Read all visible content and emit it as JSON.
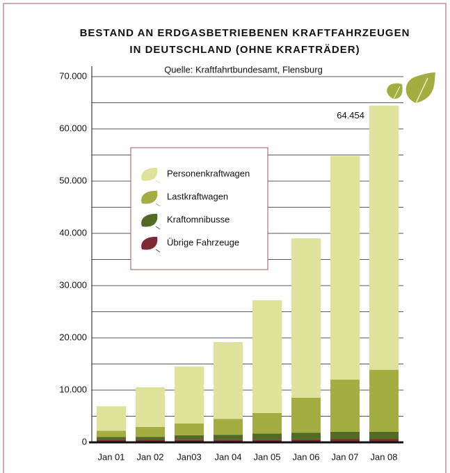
{
  "chart_data": {
    "type": "stacked_bar",
    "title": [
      "BESTAND AN ERDGASBETRIEBENEN KRAFTFAHRZEUGEN",
      "IN DEUTSCHLAND (OHNE KRAFTRÄDER)"
    ],
    "subtitle": "Quelle: Kraftfahrtbundesamt, Flensburg",
    "categories": [
      "Jan 01",
      "Jan 02",
      "Jan03",
      "Jan 04",
      "Jan 05",
      "Jan 06",
      "Jan 07",
      "Jan 08"
    ],
    "series": [
      {
        "name": "Personenkraftwagen",
        "color": "#dfe29b",
        "values": [
          4700,
          7600,
          10900,
          14700,
          21600,
          30500,
          42800,
          50554
        ]
      },
      {
        "name": "Lastkraftwagen",
        "color": "#a3ad42",
        "values": [
          1200,
          1900,
          2250,
          3050,
          3900,
          6700,
          10000,
          11900
        ]
      },
      {
        "name": "Kraftomnibusse",
        "color": "#536a24",
        "values": [
          600,
          650,
          900,
          1000,
          1200,
          1300,
          1400,
          1400
        ]
      },
      {
        "name": "Übrige Fahrzeuge",
        "color": "#7e2a36",
        "values": [
          400,
          400,
          450,
          450,
          500,
          550,
          600,
          600
        ]
      }
    ],
    "annotation": {
      "value": 64454,
      "label": "64.454"
    },
    "ylim": [
      0,
      70000
    ],
    "yticks": [
      0,
      {
        "value": 10000,
        "label": "10.000"
      },
      {
        "value": 20000,
        "label": "20.000"
      },
      {
        "value": 30000,
        "label": "30.000"
      },
      {
        "value": 40000,
        "label": "40.000"
      },
      {
        "value": 50000,
        "label": "50.000"
      },
      {
        "value": 60000,
        "label": "60.000"
      },
      {
        "value": 70000,
        "label": "70.000"
      }
    ],
    "minor_yticks": [
      5000,
      15000,
      25000,
      35000,
      45000,
      55000,
      65000
    ],
    "grid": true
  }
}
